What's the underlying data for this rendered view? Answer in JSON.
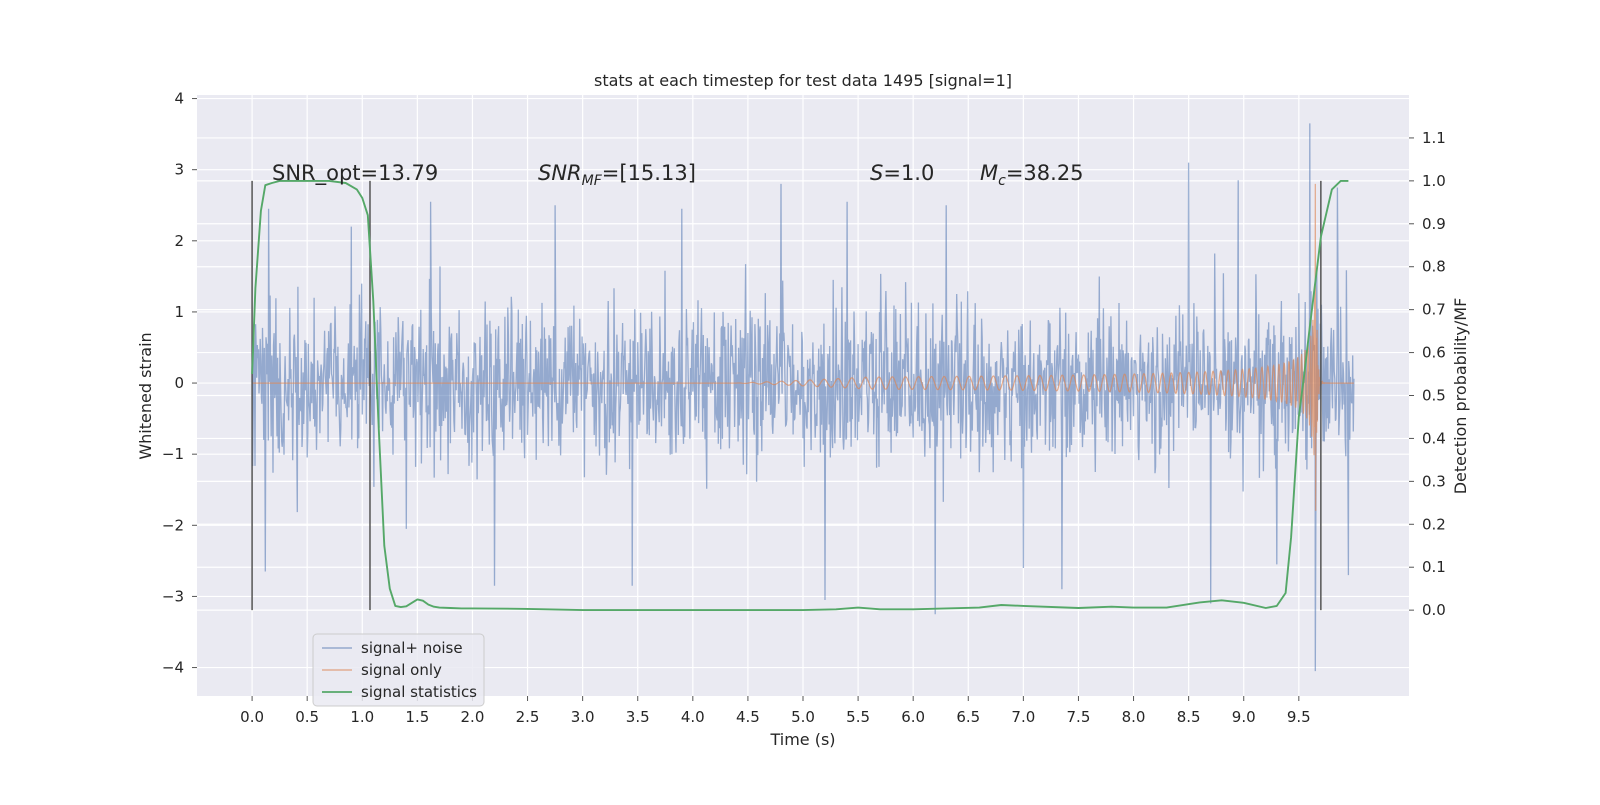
{
  "chart_data": {
    "type": "line",
    "title": "stats at each timestep for test data 1495 [signal=1]",
    "xlabel": "Time (s)",
    "ylabel": "Whitened strain",
    "y2label": "Detection probability/MF",
    "xlim": [
      -0.5,
      10.5
    ],
    "ylim": [
      -4.4,
      4.05
    ],
    "y2lim": [
      -0.2,
      1.2
    ],
    "x_ticks": [
      "0.0",
      "0.5",
      "1.0",
      "1.5",
      "2.0",
      "2.5",
      "3.0",
      "3.5",
      "4.0",
      "4.5",
      "5.0",
      "5.5",
      "6.0",
      "6.5",
      "7.0",
      "7.5",
      "8.0",
      "8.5",
      "9.0",
      "9.5"
    ],
    "y_ticks": [
      "4",
      "3",
      "2",
      "1",
      "0",
      "−1",
      "−2",
      "−3",
      "−4"
    ],
    "y2_ticks": [
      "1.1",
      "1.0",
      "0.9",
      "0.8",
      "0.7",
      "0.6",
      "0.5",
      "0.4",
      "0.3",
      "0.2",
      "0.1",
      "0.0"
    ],
    "grid": true,
    "legend_position": "lower-left",
    "annotations": {
      "snr_opt": "SNR_opt=13.79",
      "snr_mf_label": "SNR",
      "snr_mf_sub": "MF",
      "snr_mf_value": "=[15.13]",
      "s_label": "S",
      "s_value": "=1.0",
      "mc_label": "M",
      "mc_sub": "c",
      "mc_value": "=38.25"
    },
    "vlines": [
      0.0,
      1.07,
      9.7
    ],
    "series": [
      {
        "name": "signal+ noise",
        "color": "#4c72b0",
        "kind": "noise",
        "x_range": [
          0.0,
          10.0
        ],
        "typical_amplitude": 1.1,
        "peaks": [
          {
            "x": 0.12,
            "y": -2.65
          },
          {
            "x": 0.15,
            "y": 2.45
          },
          {
            "x": 0.9,
            "y": 2.2
          },
          {
            "x": 1.4,
            "y": -2.05
          },
          {
            "x": 1.62,
            "y": 2.55
          },
          {
            "x": 2.2,
            "y": -2.85
          },
          {
            "x": 2.75,
            "y": 2.5
          },
          {
            "x": 3.45,
            "y": -2.85
          },
          {
            "x": 3.9,
            "y": 2.45
          },
          {
            "x": 4.8,
            "y": 2.8
          },
          {
            "x": 5.2,
            "y": -3.05
          },
          {
            "x": 5.4,
            "y": 2.55
          },
          {
            "x": 6.2,
            "y": -3.25
          },
          {
            "x": 6.3,
            "y": 2.5
          },
          {
            "x": 7.0,
            "y": -2.6
          },
          {
            "x": 7.35,
            "y": -2.9
          },
          {
            "x": 8.5,
            "y": 3.1
          },
          {
            "x": 8.7,
            "y": -3.1
          },
          {
            "x": 8.95,
            "y": 2.85
          },
          {
            "x": 9.3,
            "y": -2.55
          },
          {
            "x": 9.6,
            "y": 3.65
          },
          {
            "x": 9.65,
            "y": -4.05
          },
          {
            "x": 9.85,
            "y": 2.75
          },
          {
            "x": 9.95,
            "y": -2.7
          }
        ]
      },
      {
        "name": "signal only",
        "color": "#dd8452",
        "kind": "chirp",
        "x_range": [
          0.0,
          10.0
        ],
        "merger_time": 9.65,
        "peak_amplitude": 2.8
      },
      {
        "name": "signal statistics",
        "color": "#55a868",
        "axis": "right",
        "x": [
          0.0,
          0.03,
          0.08,
          0.12,
          0.18,
          0.25,
          0.35,
          0.5,
          0.7,
          0.85,
          0.95,
          1.0,
          1.05,
          1.1,
          1.15,
          1.2,
          1.25,
          1.3,
          1.35,
          1.4,
          1.45,
          1.5,
          1.55,
          1.6,
          1.65,
          1.7,
          1.8,
          1.9,
          2.0,
          2.5,
          3.0,
          3.5,
          4.0,
          4.5,
          5.0,
          5.3,
          5.5,
          5.7,
          6.0,
          6.3,
          6.6,
          6.8,
          7.0,
          7.5,
          7.8,
          8.0,
          8.3,
          8.6,
          8.8,
          9.0,
          9.2,
          9.3,
          9.38,
          9.43,
          9.5,
          9.55,
          9.6,
          9.7,
          9.8,
          9.88,
          9.95
        ],
        "y": [
          0.55,
          0.75,
          0.93,
          0.99,
          0.995,
          1.0,
          1.0,
          1.0,
          1.0,
          0.995,
          0.98,
          0.96,
          0.92,
          0.72,
          0.42,
          0.15,
          0.05,
          0.01,
          0.007,
          0.009,
          0.017,
          0.025,
          0.022,
          0.013,
          0.008,
          0.006,
          0.005,
          0.004,
          0.004,
          0.003,
          0.0,
          0.0,
          0.0,
          0.0,
          0.0,
          0.002,
          0.006,
          0.002,
          0.002,
          0.004,
          0.006,
          0.012,
          0.01,
          0.005,
          0.008,
          0.006,
          0.006,
          0.018,
          0.023,
          0.017,
          0.005,
          0.01,
          0.04,
          0.17,
          0.45,
          0.55,
          0.66,
          0.87,
          0.98,
          1.0,
          1.0
        ]
      }
    ]
  }
}
